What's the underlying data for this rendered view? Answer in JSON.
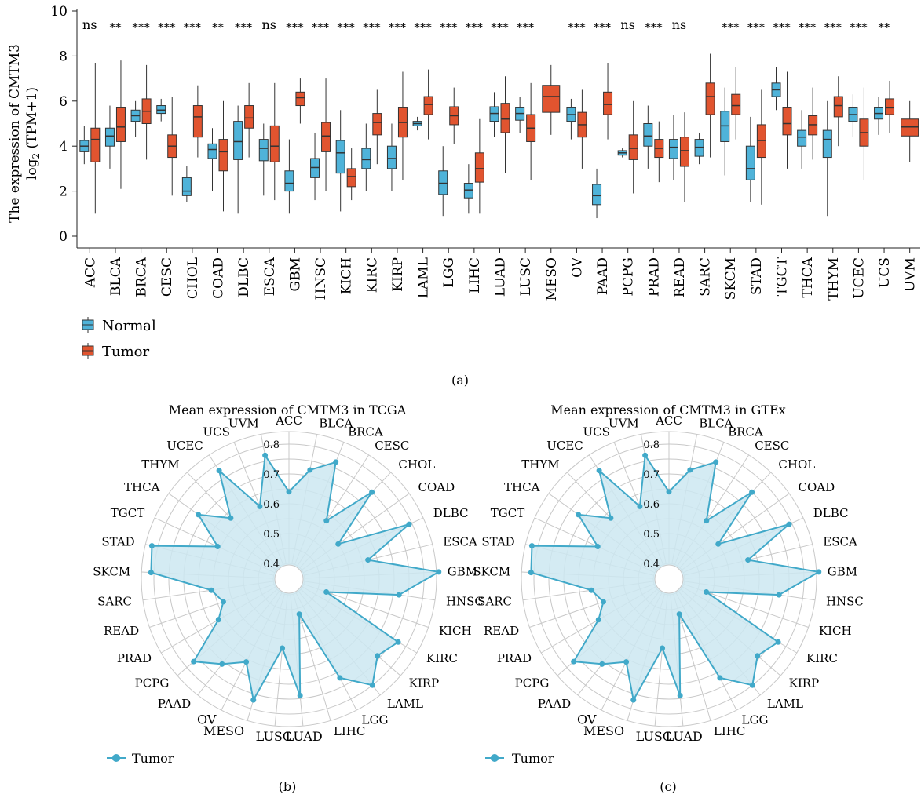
{
  "colors": {
    "normal": "#4fb3d9",
    "tumor": "#e1542f",
    "radar_line": "#41a9c9",
    "radar_fill": "#cde8f1",
    "grid": "#c8c8c8"
  },
  "chart_data": [
    {
      "panel": "(a)",
      "type": "box",
      "ylabel_main": "The expression of CMTM3",
      "ylabel_sub_pre": "log",
      "ylabel_sub_subscript": "2",
      "ylabel_sub_post": " (TPM+1)",
      "ylim": [
        0,
        10
      ],
      "yticks": [
        0,
        2,
        4,
        6,
        8,
        10
      ],
      "legend": {
        "placement": "bottom-left",
        "items": [
          "Normal",
          "Tumor"
        ]
      },
      "categories": [
        "ACC",
        "BLCA",
        "BRCA",
        "CESC",
        "CHOL",
        "COAD",
        "DLBC",
        "ESCA",
        "GBM",
        "HNSC",
        "KICH",
        "KIRC",
        "KIRP",
        "LAML",
        "LGG",
        "LIHC",
        "LUAD",
        "LUSC",
        "MESO",
        "OV",
        "PAAD",
        "PCPG",
        "PRAD",
        "READ",
        "SARC",
        "SKCM",
        "STAD",
        "TGCT",
        "THCA",
        "THYM",
        "UCEC",
        "UCS",
        "UVM"
      ],
      "significance": [
        "ns",
        "**",
        "***",
        "***",
        "***",
        "**",
        "***",
        "ns",
        "***",
        "***",
        "***",
        "***",
        "***",
        "***",
        "***",
        "***",
        "***",
        "***",
        "",
        "***",
        "***",
        "ns",
        "***",
        "ns",
        "",
        "***",
        "***",
        "***",
        "***",
        "***",
        "***",
        "**",
        ""
      ],
      "series": [
        {
          "name": "Normal",
          "boxes": [
            {
              "q1": 3.75,
              "median": 4.0,
              "q3": 4.25,
              "wlo": 3.2,
              "whi": 4.9
            },
            {
              "q1": 4.0,
              "median": 4.45,
              "q3": 4.8,
              "wlo": 3.0,
              "whi": 5.8
            },
            {
              "q1": 5.1,
              "median": 5.35,
              "q3": 5.6,
              "wlo": 4.4,
              "whi": 6.0
            },
            {
              "q1": 5.45,
              "median": 5.6,
              "q3": 5.8,
              "wlo": 5.1,
              "whi": 6.1
            },
            {
              "q1": 1.8,
              "median": 2.0,
              "q3": 2.6,
              "wlo": 1.5,
              "whi": 3.1
            },
            {
              "q1": 3.45,
              "median": 3.85,
              "q3": 4.1,
              "wlo": 2.0,
              "whi": 4.8
            },
            {
              "q1": 3.4,
              "median": 4.2,
              "q3": 5.1,
              "wlo": 1.0,
              "whi": 5.8
            },
            {
              "q1": 3.35,
              "median": 3.9,
              "q3": 4.3,
              "wlo": 1.8,
              "whi": 5.0
            },
            {
              "q1": 2.0,
              "median": 2.35,
              "q3": 2.9,
              "wlo": 1.0,
              "whi": 4.3
            },
            {
              "q1": 2.6,
              "median": 3.05,
              "q3": 3.45,
              "wlo": 1.6,
              "whi": 4.6
            },
            {
              "q1": 2.8,
              "median": 3.7,
              "q3": 4.25,
              "wlo": 1.1,
              "whi": 5.6
            },
            {
              "q1": 3.0,
              "median": 3.4,
              "q3": 3.9,
              "wlo": 2.0,
              "whi": 5.0
            },
            {
              "q1": 3.0,
              "median": 3.45,
              "q3": 4.0,
              "wlo": 2.0,
              "whi": 5.0
            },
            {
              "q1": 4.9,
              "median": 5.0,
              "q3": 5.1,
              "wlo": 4.7,
              "whi": 5.3
            },
            {
              "q1": 1.85,
              "median": 2.35,
              "q3": 2.9,
              "wlo": 0.9,
              "whi": 4.0
            },
            {
              "q1": 1.7,
              "median": 2.05,
              "q3": 2.35,
              "wlo": 1.0,
              "whi": 3.2
            },
            {
              "q1": 5.1,
              "median": 5.45,
              "q3": 5.75,
              "wlo": 4.4,
              "whi": 6.4
            },
            {
              "q1": 5.15,
              "median": 5.45,
              "q3": 5.7,
              "wlo": 4.6,
              "whi": 6.2
            },
            {
              "q1": null,
              "median": null,
              "q3": null,
              "wlo": null,
              "whi": null
            },
            {
              "q1": 5.1,
              "median": 5.4,
              "q3": 5.7,
              "wlo": 4.3,
              "whi": 6.1
            },
            {
              "q1": 1.4,
              "median": 1.8,
              "q3": 2.3,
              "wlo": 0.8,
              "whi": 3.0
            },
            {
              "q1": 3.6,
              "median": 3.7,
              "q3": 3.8,
              "wlo": 3.5,
              "whi": 3.9
            },
            {
              "q1": 4.0,
              "median": 4.45,
              "q3": 5.0,
              "wlo": 3.0,
              "whi": 5.8
            },
            {
              "q1": 3.45,
              "median": 3.95,
              "q3": 4.3,
              "wlo": 2.5,
              "whi": 5.4
            },
            {
              "q1": 3.55,
              "median": 3.95,
              "q3": 4.3,
              "wlo": 3.2,
              "whi": 4.6
            },
            {
              "q1": 4.2,
              "median": 4.9,
              "q3": 5.55,
              "wlo": 2.7,
              "whi": 6.6
            },
            {
              "q1": 2.5,
              "median": 3.0,
              "q3": 4.0,
              "wlo": 1.5,
              "whi": 5.3
            },
            {
              "q1": 6.2,
              "median": 6.5,
              "q3": 6.8,
              "wlo": 5.6,
              "whi": 7.5
            },
            {
              "q1": 4.0,
              "median": 4.4,
              "q3": 4.7,
              "wlo": 3.0,
              "whi": 5.6
            },
            {
              "q1": 3.5,
              "median": 4.3,
              "q3": 4.7,
              "wlo": 0.9,
              "whi": 6.0
            },
            {
              "q1": 5.1,
              "median": 5.4,
              "q3": 5.7,
              "wlo": 4.4,
              "whi": 6.3
            },
            {
              "q1": 5.2,
              "median": 5.45,
              "q3": 5.7,
              "wlo": 4.5,
              "whi": 6.2
            },
            {
              "q1": null,
              "median": null,
              "q3": null,
              "wlo": null,
              "whi": null
            }
          ]
        },
        {
          "name": "Tumor",
          "boxes": [
            {
              "q1": 3.3,
              "median": 4.3,
              "q3": 4.8,
              "wlo": 1.0,
              "whi": 7.7
            },
            {
              "q1": 4.2,
              "median": 4.85,
              "q3": 5.7,
              "wlo": 2.1,
              "whi": 7.8
            },
            {
              "q1": 5.0,
              "median": 5.55,
              "q3": 6.1,
              "wlo": 3.4,
              "whi": 7.6
            },
            {
              "q1": 3.5,
              "median": 4.0,
              "q3": 4.5,
              "wlo": 1.8,
              "whi": 6.2
            },
            {
              "q1": 4.4,
              "median": 5.3,
              "q3": 5.8,
              "wlo": 3.5,
              "whi": 6.7
            },
            {
              "q1": 2.9,
              "median": 3.75,
              "q3": 4.3,
              "wlo": 1.1,
              "whi": 6.0
            },
            {
              "q1": 4.8,
              "median": 5.25,
              "q3": 5.8,
              "wlo": 3.5,
              "whi": 6.8
            },
            {
              "q1": 3.3,
              "median": 4.0,
              "q3": 4.9,
              "wlo": 1.6,
              "whi": 6.8
            },
            {
              "q1": 5.8,
              "median": 6.15,
              "q3": 6.4,
              "wlo": 5.0,
              "whi": 7.0
            },
            {
              "q1": 3.75,
              "median": 4.45,
              "q3": 5.05,
              "wlo": 2.0,
              "whi": 7.0
            },
            {
              "q1": 2.2,
              "median": 2.65,
              "q3": 3.0,
              "wlo": 1.6,
              "whi": 3.9
            },
            {
              "q1": 4.5,
              "median": 5.05,
              "q3": 5.45,
              "wlo": 3.2,
              "whi": 6.5
            },
            {
              "q1": 4.4,
              "median": 5.05,
              "q3": 5.7,
              "wlo": 2.5,
              "whi": 7.3
            },
            {
              "q1": 5.4,
              "median": 5.85,
              "q3": 6.2,
              "wlo": 4.3,
              "whi": 7.4
            },
            {
              "q1": 4.95,
              "median": 5.35,
              "q3": 5.75,
              "wlo": 4.1,
              "whi": 6.6
            },
            {
              "q1": 2.4,
              "median": 3.0,
              "q3": 3.7,
              "wlo": 1.0,
              "whi": 5.2
            },
            {
              "q1": 4.6,
              "median": 5.2,
              "q3": 5.9,
              "wlo": 2.8,
              "whi": 7.1
            },
            {
              "q1": 4.2,
              "median": 4.8,
              "q3": 5.4,
              "wlo": 2.5,
              "whi": 6.8
            },
            {
              "q1": 5.5,
              "median": 6.2,
              "q3": 6.7,
              "wlo": 4.5,
              "whi": 7.6
            },
            {
              "q1": 4.4,
              "median": 4.95,
              "q3": 5.5,
              "wlo": 3.0,
              "whi": 6.5
            },
            {
              "q1": 5.4,
              "median": 5.85,
              "q3": 6.4,
              "wlo": 4.3,
              "whi": 7.7
            },
            {
              "q1": 3.4,
              "median": 3.9,
              "q3": 4.5,
              "wlo": 1.9,
              "whi": 6.0
            },
            {
              "q1": 3.5,
              "median": 3.9,
              "q3": 4.3,
              "wlo": 2.4,
              "whi": 5.1
            },
            {
              "q1": 3.1,
              "median": 3.8,
              "q3": 4.4,
              "wlo": 1.5,
              "whi": 5.5
            },
            {
              "q1": 5.4,
              "median": 6.2,
              "q3": 6.8,
              "wlo": 3.5,
              "whi": 8.1
            },
            {
              "q1": 5.4,
              "median": 5.8,
              "q3": 6.3,
              "wlo": 4.3,
              "whi": 7.5
            },
            {
              "q1": 3.5,
              "median": 4.25,
              "q3": 4.95,
              "wlo": 1.4,
              "whi": 6.5
            },
            {
              "q1": 4.5,
              "median": 5.0,
              "q3": 5.7,
              "wlo": 3.0,
              "whi": 7.3
            },
            {
              "q1": 4.5,
              "median": 4.95,
              "q3": 5.35,
              "wlo": 3.4,
              "whi": 6.6
            },
            {
              "q1": 5.3,
              "median": 5.8,
              "q3": 6.2,
              "wlo": 4.0,
              "whi": 7.1
            },
            {
              "q1": 4.0,
              "median": 4.6,
              "q3": 5.2,
              "wlo": 2.5,
              "whi": 6.6
            },
            {
              "q1": 5.4,
              "median": 5.7,
              "q3": 6.1,
              "wlo": 4.6,
              "whi": 6.9
            },
            {
              "q1": 4.45,
              "median": 4.85,
              "q3": 5.2,
              "wlo": 3.3,
              "whi": 6.0
            }
          ]
        }
      ]
    },
    {
      "panel": "(b)",
      "type": "radar",
      "title": "Mean expression of CMTM3 in TCGA",
      "rlim": [
        0.4,
        0.8
      ],
      "rticks": [
        0.4,
        0.5,
        0.6,
        0.7,
        0.8
      ],
      "legend": {
        "placement": "bottom-left",
        "items": [
          "Tumor"
        ]
      },
      "categories": [
        "ACC",
        "BLCA",
        "BRCA",
        "CESC",
        "CHOL",
        "COAD",
        "DLBC",
        "ESCA",
        "GBM",
        "HNSC",
        "KICH",
        "KIRC",
        "KIRP",
        "LAML",
        "LGG",
        "LIHC",
        "LUAD",
        "LUSC",
        "MESO",
        "OV",
        "PAAD",
        "PCPG",
        "PRAD",
        "READ",
        "SARC",
        "SKCM",
        "STAD",
        "TGCT",
        "THCA",
        "THYM",
        "UCEC",
        "UCS",
        "UVM"
      ],
      "series": [
        {
          "name": "Tumor",
          "values": [
            0.64,
            0.72,
            0.77,
            0.58,
            0.75,
            0.55,
            0.79,
            0.62,
            0.85,
            0.72,
            0.48,
            0.77,
            0.74,
            0.8,
            0.72,
            0.47,
            0.74,
            0.58,
            0.77,
            0.66,
            0.71,
            0.77,
            0.62,
            0.58,
            0.61,
            0.81,
            0.82,
            0.61,
            0.72,
            0.63,
            0.78,
            0.61,
            0.77
          ]
        }
      ]
    },
    {
      "panel": "(c)",
      "type": "radar",
      "title": "Mean expression of CMTM3 in GTEx",
      "rlim": [
        0.4,
        0.8
      ],
      "rticks": [
        0.4,
        0.5,
        0.6,
        0.7,
        0.8
      ],
      "legend": {
        "placement": "bottom-left",
        "items": [
          "Tumor"
        ]
      },
      "categories": [
        "ACC",
        "BLCA",
        "BRCA",
        "CESC",
        "CHOL",
        "COAD",
        "DLBC",
        "ESCA",
        "GBM",
        "HNSC",
        "KICH",
        "KIRC",
        "KIRP",
        "LAML",
        "LGG",
        "LIHC",
        "LUAD",
        "LUSC",
        "MESO",
        "OV",
        "PAAD",
        "PCPG",
        "PRAD",
        "READ",
        "SARC",
        "SKCM",
        "STAD",
        "TGCT",
        "THCA",
        "THYM",
        "UCEC",
        "UCS",
        "UVM"
      ],
      "series": [
        {
          "name": "Tumor",
          "values": [
            0.64,
            0.72,
            0.77,
            0.58,
            0.75,
            0.55,
            0.79,
            0.62,
            0.85,
            0.72,
            0.48,
            0.77,
            0.74,
            0.8,
            0.72,
            0.47,
            0.74,
            0.58,
            0.77,
            0.66,
            0.71,
            0.77,
            0.62,
            0.58,
            0.61,
            0.81,
            0.82,
            0.61,
            0.72,
            0.63,
            0.78,
            0.61,
            0.77
          ]
        }
      ]
    }
  ]
}
